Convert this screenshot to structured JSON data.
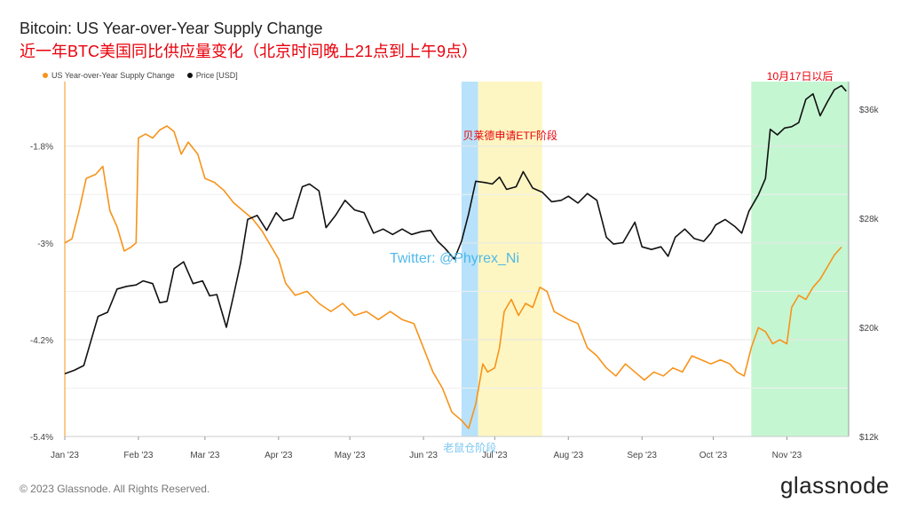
{
  "header": {
    "title": "Bitcoin: US Year-over-Year Supply Change",
    "subtitle": "近一年BTC美国同比供应量变化（北京时间晚上21点到上午9点）"
  },
  "footer": {
    "copyright": "© 2023 Glassnode. All Rights Reserved.",
    "brand": "glassnode"
  },
  "legend": [
    {
      "label": "US Year-over-Year Supply Change",
      "color": "#f7931a"
    },
    {
      "label": "Price [USD]",
      "color": "#111111"
    }
  ],
  "chart_data": {
    "type": "line",
    "x_range": [
      "2023-01-01",
      "2023-11-27"
    ],
    "x_ticks": [
      {
        "date": "2023-01-01",
        "label": "Jan '23"
      },
      {
        "date": "2023-02-01",
        "label": "Feb '23"
      },
      {
        "date": "2023-03-01",
        "label": "Mar '23"
      },
      {
        "date": "2023-04-01",
        "label": "Apr '23"
      },
      {
        "date": "2023-05-01",
        "label": "May '23"
      },
      {
        "date": "2023-06-01",
        "label": "Jun '23"
      },
      {
        "date": "2023-07-01",
        "label": "Jul '23"
      },
      {
        "date": "2023-08-01",
        "label": "Aug '23"
      },
      {
        "date": "2023-09-01",
        "label": "Sep '23"
      },
      {
        "date": "2023-10-01",
        "label": "Oct '23"
      },
      {
        "date": "2023-11-01",
        "label": "Nov '23"
      }
    ],
    "y_left": {
      "range": [
        -5.4,
        -1.0
      ],
      "ticks": [
        -5.4,
        -4.2,
        -3.0,
        -1.8
      ],
      "tick_labels": [
        "-5.4%",
        "-4.2%",
        "-3%",
        "-1.8%"
      ]
    },
    "y_right": {
      "range": [
        12000,
        38000
      ],
      "ticks": [
        12000,
        20000,
        28000,
        36000
      ],
      "tick_labels": [
        "$12k",
        "$20k",
        "$28k",
        "$36k"
      ]
    },
    "grid": true,
    "series": [
      {
        "name": "US Year-over-Year Supply Change",
        "axis": "left",
        "color": "#f7931a",
        "points": [
          [
            "2023-01-01",
            -3.0
          ],
          [
            "2023-01-04",
            -2.95
          ],
          [
            "2023-01-07",
            -2.6
          ],
          [
            "2023-01-10",
            -2.2
          ],
          [
            "2023-01-14",
            -2.15
          ],
          [
            "2023-01-17",
            -2.05
          ],
          [
            "2023-01-20",
            -2.6
          ],
          [
            "2023-01-23",
            -2.8
          ],
          [
            "2023-01-26",
            -3.1
          ],
          [
            "2023-01-29",
            -3.05
          ],
          [
            "2023-01-31",
            -3.0
          ],
          [
            "2023-02-01",
            -1.7
          ],
          [
            "2023-02-04",
            -1.65
          ],
          [
            "2023-02-07",
            -1.7
          ],
          [
            "2023-02-10",
            -1.6
          ],
          [
            "2023-02-13",
            -1.55
          ],
          [
            "2023-02-16",
            -1.62
          ],
          [
            "2023-02-19",
            -1.9
          ],
          [
            "2023-02-22",
            -1.75
          ],
          [
            "2023-02-26",
            -1.9
          ],
          [
            "2023-03-01",
            -2.2
          ],
          [
            "2023-03-05",
            -2.25
          ],
          [
            "2023-03-09",
            -2.35
          ],
          [
            "2023-03-13",
            -2.5
          ],
          [
            "2023-03-17",
            -2.6
          ],
          [
            "2023-03-21",
            -2.7
          ],
          [
            "2023-03-25",
            -2.85
          ],
          [
            "2023-03-29",
            -3.05
          ],
          [
            "2023-04-01",
            -3.2
          ],
          [
            "2023-04-04",
            -3.5
          ],
          [
            "2023-04-08",
            -3.65
          ],
          [
            "2023-04-13",
            -3.6
          ],
          [
            "2023-04-18",
            -3.75
          ],
          [
            "2023-04-23",
            -3.85
          ],
          [
            "2023-04-28",
            -3.75
          ],
          [
            "2023-05-03",
            -3.9
          ],
          [
            "2023-05-08",
            -3.85
          ],
          [
            "2023-05-13",
            -3.95
          ],
          [
            "2023-05-18",
            -3.85
          ],
          [
            "2023-05-23",
            -3.95
          ],
          [
            "2023-05-28",
            -4.0
          ],
          [
            "2023-06-01",
            -4.3
          ],
          [
            "2023-06-05",
            -4.6
          ],
          [
            "2023-06-09",
            -4.8
          ],
          [
            "2023-06-13",
            -5.1
          ],
          [
            "2023-06-17",
            -5.2
          ],
          [
            "2023-06-20",
            -5.3
          ],
          [
            "2023-06-23",
            -5.0
          ],
          [
            "2023-06-26",
            -4.5
          ],
          [
            "2023-06-28",
            -4.6
          ],
          [
            "2023-07-01",
            -4.55
          ],
          [
            "2023-07-03",
            -4.3
          ],
          [
            "2023-07-05",
            -3.85
          ],
          [
            "2023-07-08",
            -3.7
          ],
          [
            "2023-07-11",
            -3.9
          ],
          [
            "2023-07-14",
            -3.75
          ],
          [
            "2023-07-17",
            -3.8
          ],
          [
            "2023-07-20",
            -3.55
          ],
          [
            "2023-07-23",
            -3.6
          ],
          [
            "2023-07-26",
            -3.85
          ],
          [
            "2023-07-29",
            -3.9
          ],
          [
            "2023-08-01",
            -3.95
          ],
          [
            "2023-08-05",
            -4.0
          ],
          [
            "2023-08-09",
            -4.3
          ],
          [
            "2023-08-13",
            -4.4
          ],
          [
            "2023-08-17",
            -4.55
          ],
          [
            "2023-08-21",
            -4.65
          ],
          [
            "2023-08-25",
            -4.5
          ],
          [
            "2023-08-29",
            -4.6
          ],
          [
            "2023-09-02",
            -4.7
          ],
          [
            "2023-09-06",
            -4.6
          ],
          [
            "2023-09-10",
            -4.65
          ],
          [
            "2023-09-14",
            -4.55
          ],
          [
            "2023-09-18",
            -4.6
          ],
          [
            "2023-09-22",
            -4.4
          ],
          [
            "2023-09-26",
            -4.45
          ],
          [
            "2023-09-30",
            -4.5
          ],
          [
            "2023-10-04",
            -4.45
          ],
          [
            "2023-10-08",
            -4.5
          ],
          [
            "2023-10-11",
            -4.6
          ],
          [
            "2023-10-14",
            -4.65
          ],
          [
            "2023-10-17",
            -4.3
          ],
          [
            "2023-10-20",
            -4.05
          ],
          [
            "2023-10-23",
            -4.1
          ],
          [
            "2023-10-26",
            -4.25
          ],
          [
            "2023-10-29",
            -4.2
          ],
          [
            "2023-11-01",
            -4.25
          ],
          [
            "2023-11-03",
            -3.8
          ],
          [
            "2023-11-06",
            -3.65
          ],
          [
            "2023-11-09",
            -3.7
          ],
          [
            "2023-11-12",
            -3.55
          ],
          [
            "2023-11-15",
            -3.45
          ],
          [
            "2023-11-18",
            -3.3
          ],
          [
            "2023-11-21",
            -3.15
          ],
          [
            "2023-11-24",
            -3.05
          ]
        ]
      },
      {
        "name": "Price [USD]",
        "axis": "right",
        "color": "#111111",
        "points": [
          [
            "2023-01-01",
            16600
          ],
          [
            "2023-01-05",
            16850
          ],
          [
            "2023-01-09",
            17200
          ],
          [
            "2023-01-12",
            19000
          ],
          [
            "2023-01-15",
            20800
          ],
          [
            "2023-01-19",
            21100
          ],
          [
            "2023-01-23",
            22800
          ],
          [
            "2023-01-27",
            23000
          ],
          [
            "2023-01-31",
            23100
          ],
          [
            "2023-02-03",
            23400
          ],
          [
            "2023-02-07",
            23200
          ],
          [
            "2023-02-10",
            21800
          ],
          [
            "2023-02-13",
            21900
          ],
          [
            "2023-02-16",
            24300
          ],
          [
            "2023-02-20",
            24800
          ],
          [
            "2023-02-24",
            23200
          ],
          [
            "2023-02-28",
            23400
          ],
          [
            "2023-03-03",
            22300
          ],
          [
            "2023-03-06",
            22400
          ],
          [
            "2023-03-10",
            20000
          ],
          [
            "2023-03-13",
            22300
          ],
          [
            "2023-03-16",
            24700
          ],
          [
            "2023-03-19",
            27900
          ],
          [
            "2023-03-23",
            28200
          ],
          [
            "2023-03-27",
            27100
          ],
          [
            "2023-03-31",
            28400
          ],
          [
            "2023-04-03",
            27800
          ],
          [
            "2023-04-07",
            28000
          ],
          [
            "2023-04-11",
            30300
          ],
          [
            "2023-04-14",
            30500
          ],
          [
            "2023-04-18",
            30000
          ],
          [
            "2023-04-21",
            27300
          ],
          [
            "2023-04-25",
            28200
          ],
          [
            "2023-04-29",
            29300
          ],
          [
            "2023-05-03",
            28600
          ],
          [
            "2023-05-07",
            28400
          ],
          [
            "2023-05-11",
            26900
          ],
          [
            "2023-05-15",
            27200
          ],
          [
            "2023-05-19",
            26800
          ],
          [
            "2023-05-23",
            27200
          ],
          [
            "2023-05-27",
            26800
          ],
          [
            "2023-05-31",
            27000
          ],
          [
            "2023-06-04",
            27100
          ],
          [
            "2023-06-07",
            26300
          ],
          [
            "2023-06-10",
            25800
          ],
          [
            "2023-06-14",
            25000
          ],
          [
            "2023-06-17",
            26300
          ],
          [
            "2023-06-20",
            28300
          ],
          [
            "2023-06-23",
            30700
          ],
          [
            "2023-06-27",
            30600
          ],
          [
            "2023-06-30",
            30500
          ],
          [
            "2023-07-03",
            31000
          ],
          [
            "2023-07-06",
            30100
          ],
          [
            "2023-07-10",
            30300
          ],
          [
            "2023-07-13",
            31400
          ],
          [
            "2023-07-17",
            30200
          ],
          [
            "2023-07-21",
            29900
          ],
          [
            "2023-07-25",
            29200
          ],
          [
            "2023-07-29",
            29300
          ],
          [
            "2023-08-01",
            29600
          ],
          [
            "2023-08-05",
            29100
          ],
          [
            "2023-08-09",
            29800
          ],
          [
            "2023-08-13",
            29300
          ],
          [
            "2023-08-17",
            26600
          ],
          [
            "2023-08-20",
            26100
          ],
          [
            "2023-08-24",
            26200
          ],
          [
            "2023-08-29",
            27700
          ],
          [
            "2023-09-01",
            25900
          ],
          [
            "2023-09-05",
            25700
          ],
          [
            "2023-09-09",
            25900
          ],
          [
            "2023-09-12",
            25200
          ],
          [
            "2023-09-15",
            26600
          ],
          [
            "2023-09-19",
            27200
          ],
          [
            "2023-09-23",
            26500
          ],
          [
            "2023-09-27",
            26300
          ],
          [
            "2023-09-30",
            26900
          ],
          [
            "2023-10-02",
            27500
          ],
          [
            "2023-10-06",
            27900
          ],
          [
            "2023-10-10",
            27400
          ],
          [
            "2023-10-13",
            26900
          ],
          [
            "2023-10-16",
            28500
          ],
          [
            "2023-10-20",
            29700
          ],
          [
            "2023-10-23",
            30900
          ],
          [
            "2023-10-25",
            34500
          ],
          [
            "2023-10-28",
            34100
          ],
          [
            "2023-10-31",
            34600
          ],
          [
            "2023-11-03",
            34700
          ],
          [
            "2023-11-06",
            35000
          ],
          [
            "2023-11-09",
            36700
          ],
          [
            "2023-11-12",
            37100
          ],
          [
            "2023-11-15",
            35500
          ],
          [
            "2023-11-18",
            36500
          ],
          [
            "2023-11-21",
            37400
          ],
          [
            "2023-11-24",
            37700
          ],
          [
            "2023-11-26",
            37300
          ]
        ]
      }
    ],
    "regions": [
      {
        "label": "老鼠仓阶段",
        "start": "2023-06-17",
        "end": "2023-06-24",
        "color": "#b8e2fb",
        "label_color": "#7ec7f0",
        "label_pos": "bottom"
      },
      {
        "label": "贝莱德申请ETF阶段",
        "start": "2023-06-24",
        "end": "2023-07-21",
        "color": "#fdf6c3",
        "label_color": "#e8000b",
        "label_pos": "top"
      },
      {
        "label": "10月17日以后",
        "start": "2023-10-17",
        "end": "2023-11-27",
        "color": "#c5f6d2",
        "label_color": "#e8000b",
        "label_pos": "top"
      }
    ],
    "annotation": {
      "text": "Twitter: @Phyrex_Ni",
      "color": "#3fb2ea"
    }
  }
}
